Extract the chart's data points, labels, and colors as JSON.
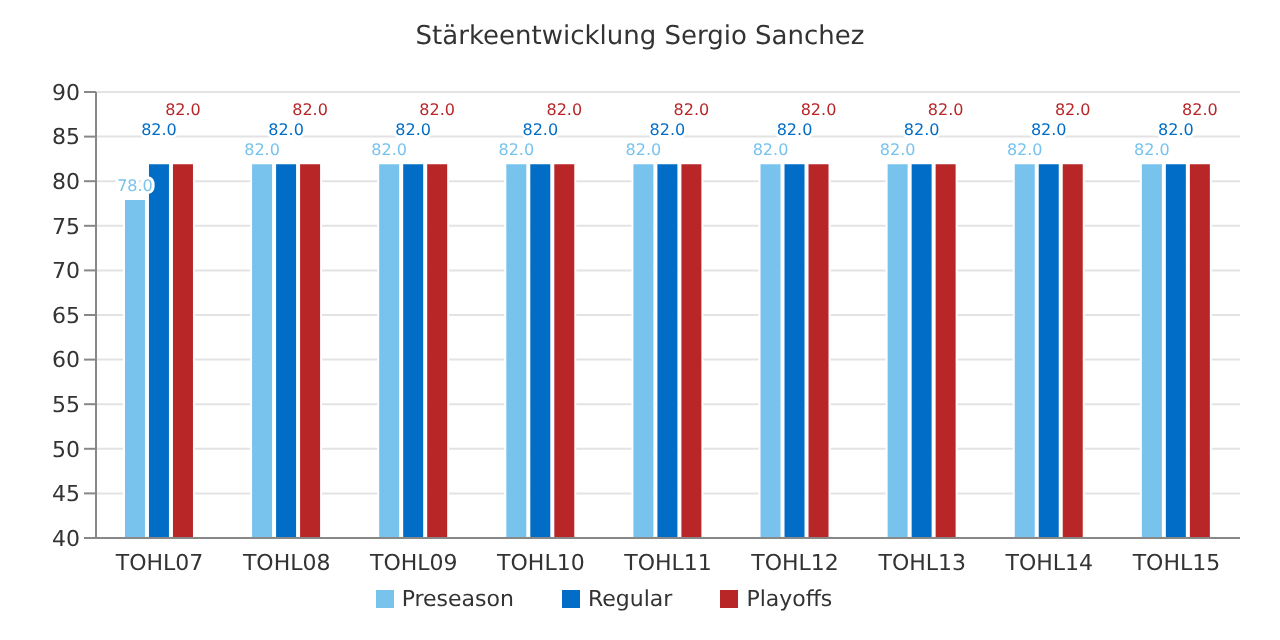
{
  "chart_data": {
    "type": "bar",
    "title": "Stärkeentwicklung Sergio Sanchez",
    "categories": [
      "TOHL07",
      "TOHL08",
      "TOHL09",
      "TOHL10",
      "TOHL11",
      "TOHL12",
      "TOHL13",
      "TOHL14",
      "TOHL15"
    ],
    "series": [
      {
        "name": "Preseason",
        "color": "#77c3ee",
        "values": [
          78,
          82,
          82,
          82,
          82,
          82,
          82,
          82,
          82
        ],
        "value_labels": [
          "78.0",
          "82.0",
          "82.0",
          "82.0",
          "82.0",
          "82.0",
          "82.0",
          "82.0",
          "82.0"
        ]
      },
      {
        "name": "Regular",
        "color": "#016dc6",
        "values": [
          82,
          82,
          82,
          82,
          82,
          82,
          82,
          82,
          82
        ],
        "value_labels": [
          "82.0",
          "82.0",
          "82.0",
          "82.0",
          "82.0",
          "82.0",
          "82.0",
          "82.0",
          "82.0"
        ]
      },
      {
        "name": "Playoffs",
        "color": "#b82628",
        "values": [
          82,
          82,
          82,
          82,
          82,
          82,
          82,
          82,
          82
        ],
        "value_labels": [
          "82.0",
          "82.0",
          "82.0",
          "82.0",
          "82.0",
          "82.0",
          "82.0",
          "82.0",
          "82.0"
        ]
      }
    ],
    "ylim": [
      40,
      90
    ],
    "yticks": [
      40,
      45,
      50,
      55,
      60,
      65,
      70,
      75,
      80,
      85,
      90
    ],
    "grid": "y",
    "legend": "bottom"
  }
}
